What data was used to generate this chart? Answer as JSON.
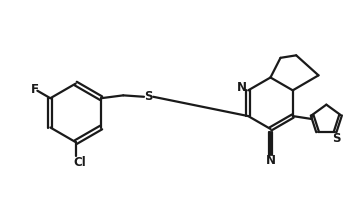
{
  "background_color": "#ffffff",
  "line_color": "#1a1a1a",
  "line_width": 1.6,
  "text_color": "#1a1a1a",
  "font_size": 8.5,
  "figsize": [
    3.48,
    2.15
  ],
  "dpi": 100,
  "xlim": [
    -5.5,
    4.2
  ],
  "ylim": [
    -2.2,
    2.0
  ]
}
